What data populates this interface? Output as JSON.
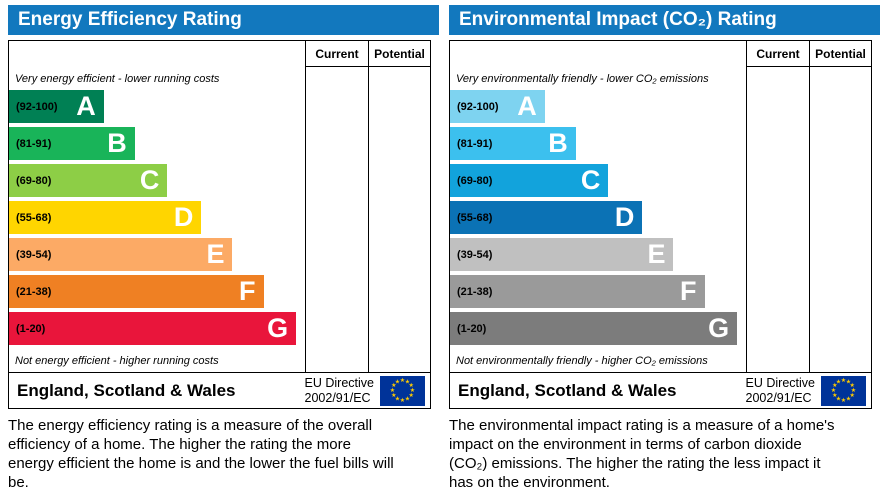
{
  "chart_data": [
    {
      "type": "bar",
      "chart": "energy-efficiency-rating",
      "title": "Energy Efficiency Rating",
      "columns": {
        "current": "Current",
        "potential": "Potential"
      },
      "top_note": "Very energy efficient - lower running costs",
      "bottom_note": "Not energy efficient - higher running costs",
      "bands": [
        {
          "letter": "A",
          "range": "(92-100)",
          "color": "#008054",
          "width_pct": 32
        },
        {
          "letter": "B",
          "range": "(81-91)",
          "color": "#19b459",
          "width_pct": 42.5
        },
        {
          "letter": "C",
          "range": "(69-80)",
          "color": "#8dce46",
          "width_pct": 53.5
        },
        {
          "letter": "D",
          "range": "(55-68)",
          "color": "#ffd500",
          "width_pct": 65
        },
        {
          "letter": "E",
          "range": "(39-54)",
          "color": "#fcaa65",
          "width_pct": 75.5
        },
        {
          "letter": "F",
          "range": "(21-38)",
          "color": "#ef8023",
          "width_pct": 86
        },
        {
          "letter": "G",
          "range": "(1-20)",
          "color": "#e9153b",
          "width_pct": 97
        }
      ],
      "footer": {
        "region": "England, Scotland & Wales",
        "directive_line1": "EU Directive",
        "directive_line2": "2002/91/EC"
      },
      "caption": "The energy efficiency rating is a measure of the overall efficiency of a home. The higher the rating the more energy efficient the home is and the lower the fuel bills will be."
    },
    {
      "type": "bar",
      "chart": "environmental-impact-co2-rating",
      "title": "Environmental Impact (CO₂) Rating",
      "columns": {
        "current": "Current",
        "potential": "Potential"
      },
      "top_note": "Very environmentally friendly - lower CO₂ emissions",
      "bottom_note": "Not environmentally friendly - higher CO₂ emissions",
      "bands": [
        {
          "letter": "A",
          "range": "(92-100)",
          "color": "#7ed3f0",
          "width_pct": 32
        },
        {
          "letter": "B",
          "range": "(81-91)",
          "color": "#3cc0ee",
          "width_pct": 42.5
        },
        {
          "letter": "C",
          "range": "(69-80)",
          "color": "#12a3dc",
          "width_pct": 53.5
        },
        {
          "letter": "D",
          "range": "(55-68)",
          "color": "#0b72b5",
          "width_pct": 65
        },
        {
          "letter": "E",
          "range": "(39-54)",
          "color": "#c0c0c0",
          "width_pct": 75.5
        },
        {
          "letter": "F",
          "range": "(21-38)",
          "color": "#9a9a9a",
          "width_pct": 86
        },
        {
          "letter": "G",
          "range": "(1-20)",
          "color": "#7c7c7c",
          "width_pct": 97
        }
      ],
      "footer": {
        "region": "England, Scotland & Wales",
        "directive_line1": "EU Directive",
        "directive_line2": "2002/91/EC"
      },
      "caption": "The environmental impact rating is a measure of a home's impact on the environment in terms of carbon dioxide (CO₂) emissions. The higher the rating the less impact it has on the environment."
    }
  ],
  "colors": {
    "header_bg": "#1278be",
    "eu_flag_bg": "#003399",
    "eu_flag_star": "#ffcc00"
  }
}
